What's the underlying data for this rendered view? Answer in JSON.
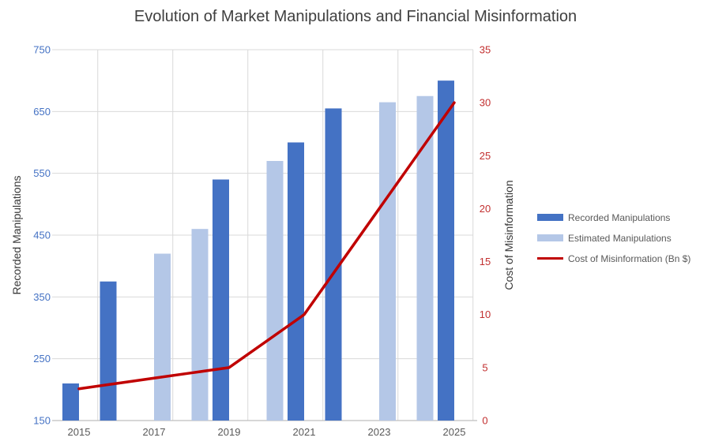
{
  "title": "Evolution of Market Manipulations and Financial Misinformation",
  "chart_data": {
    "type": "bar",
    "subtype": "clustered-column-with-line, dual axis",
    "categories": [
      2015,
      2016,
      2017,
      2018,
      2019,
      2020,
      2021,
      2022,
      2023,
      2024,
      2025
    ],
    "x_tick_labels": [
      "2015",
      "2017",
      "2019",
      "2021",
      "2023",
      "2025"
    ],
    "series": [
      {
        "name": "Recorded Manipulations",
        "type": "bar",
        "axis": "left",
        "color": "#4472C4",
        "values": [
          210,
          375,
          null,
          null,
          540,
          null,
          600,
          655,
          null,
          null,
          700
        ]
      },
      {
        "name": "Estimated Manipulations",
        "type": "bar",
        "axis": "left",
        "color": "#B4C7E7",
        "values": [
          null,
          null,
          420,
          460,
          null,
          570,
          null,
          null,
          665,
          675,
          null
        ]
      },
      {
        "name": "Cost of Misinformation (Bn $)",
        "type": "line",
        "axis": "right",
        "color": "#C00000",
        "values": [
          3,
          3.5,
          4,
          4.5,
          5,
          7.5,
          10,
          15,
          20,
          25,
          30
        ]
      }
    ],
    "left_axis": {
      "label": "Recorded Manipulations",
      "min": 150,
      "max": 750,
      "step": 100,
      "tick_color": "#4472C4"
    },
    "right_axis": {
      "label": "Cost of Misinformation",
      "min": 0,
      "max": 35,
      "step": 5,
      "tick_color": "#C22F2F"
    },
    "x_tick_color": "#595959",
    "grid": {
      "gridline_color": "#D9D9D9",
      "axis_line_color": "#BFBFBF",
      "horizontal": true,
      "vertical": true
    },
    "legend_position": "right"
  }
}
